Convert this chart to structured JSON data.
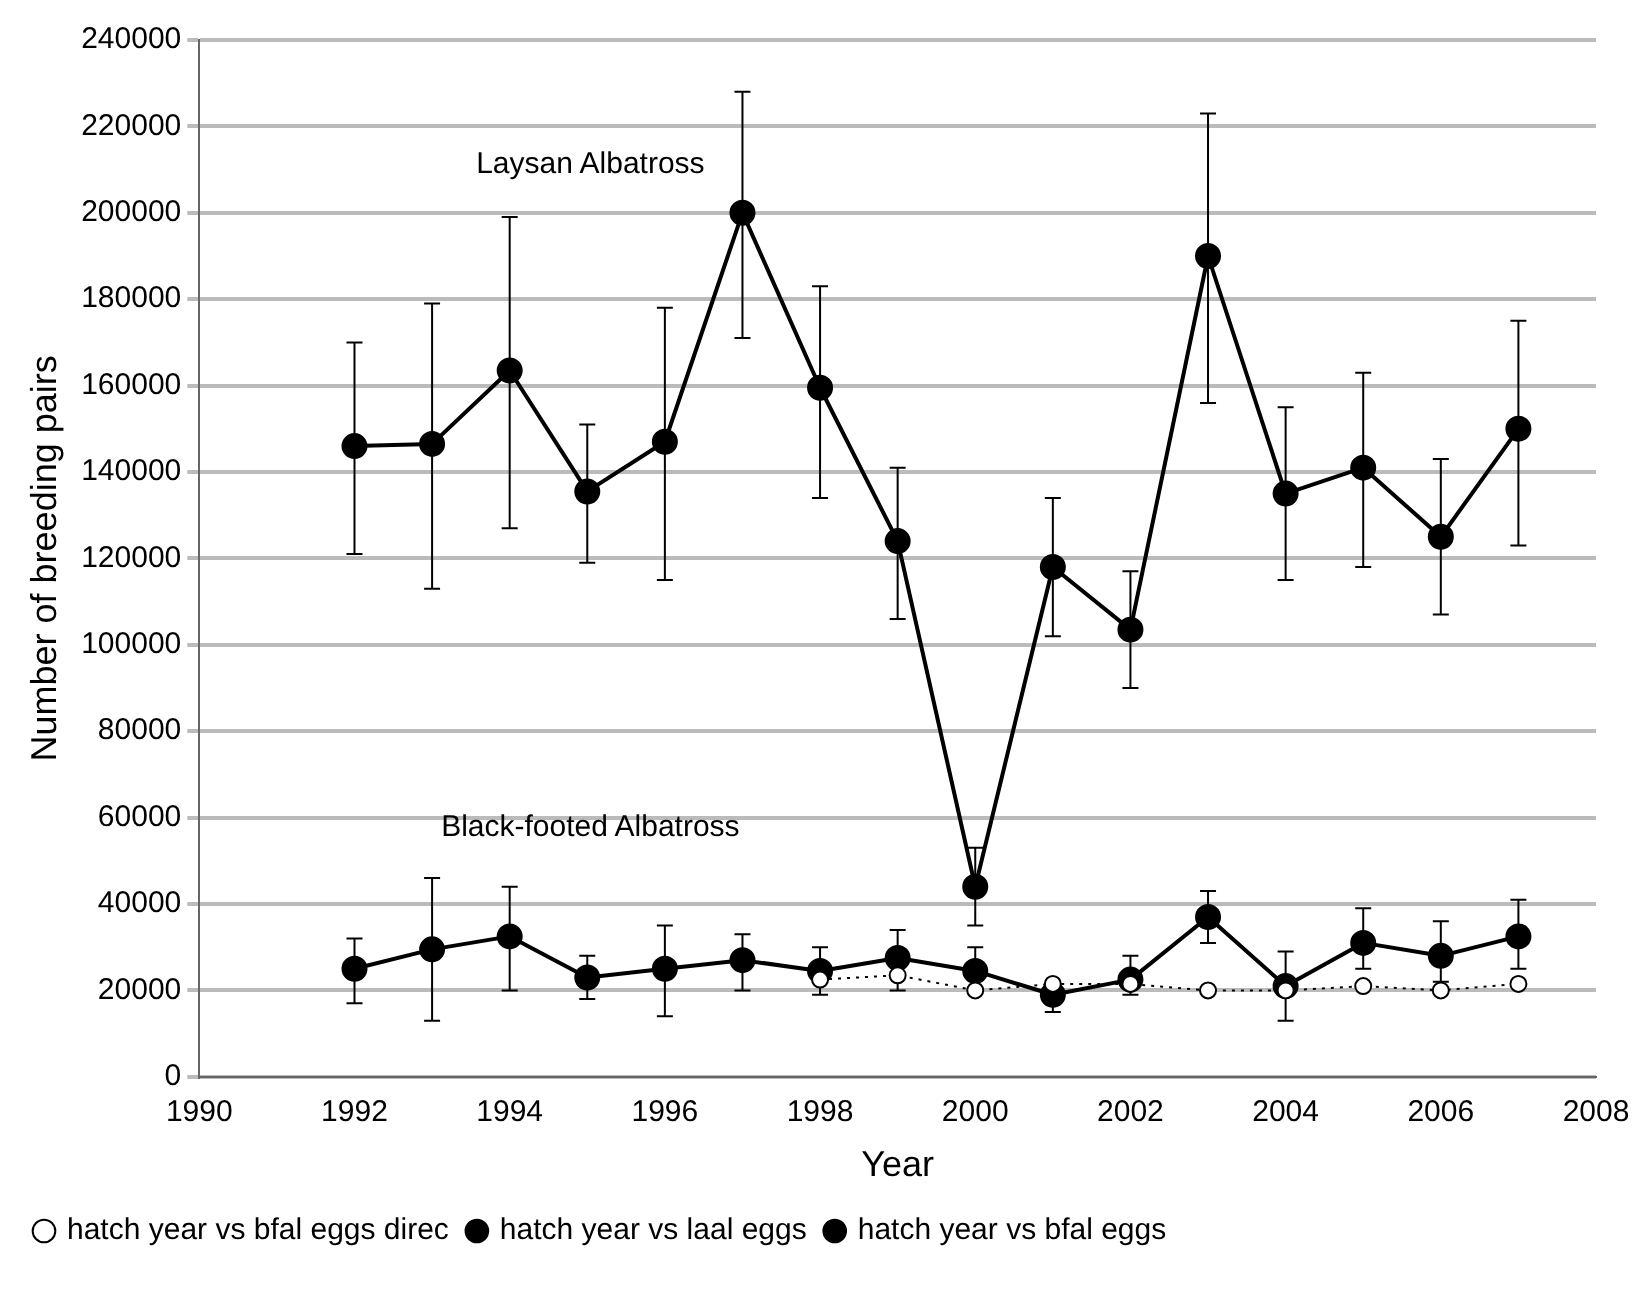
{
  "chart_data": {
    "type": "line",
    "xlabel": "Year",
    "ylabel": "Number of breeding pairs",
    "x": [
      1992,
      1993,
      1994,
      1995,
      1996,
      1997,
      1998,
      1999,
      2000,
      2001,
      2002,
      2003,
      2004,
      2005,
      2006,
      2007
    ],
    "xlim": [
      1990,
      2008
    ],
    "xticks": [
      1990,
      1992,
      1994,
      1996,
      1998,
      2000,
      2002,
      2004,
      2006,
      2008
    ],
    "ylim": [
      0,
      240000
    ],
    "yticks": [
      0,
      20000,
      40000,
      60000,
      80000,
      100000,
      120000,
      140000,
      160000,
      180000,
      200000,
      220000,
      240000
    ],
    "grid": "y",
    "legend": "bottom",
    "marker": "circle",
    "series": [
      {
        "name": "hatch year vs laal eggs",
        "color": "#000000",
        "line_style": "solid",
        "values": [
          146000,
          146500,
          163500,
          135500,
          147000,
          200000,
          159500,
          124000,
          44000,
          118000,
          103500,
          190000,
          135000,
          141000,
          125000,
          150000
        ],
        "errors": [
          [
            121000,
            170000
          ],
          [
            113000,
            179000
          ],
          [
            127000,
            199000
          ],
          [
            119000,
            151000
          ],
          [
            115000,
            178000
          ],
          [
            171000,
            228000
          ],
          [
            134000,
            183000
          ],
          [
            106000,
            141000
          ],
          [
            35000,
            53000
          ],
          [
            102000,
            134000
          ],
          [
            90000,
            117000
          ],
          [
            156000,
            223000
          ],
          [
            115000,
            155000
          ],
          [
            118000,
            163000
          ],
          [
            107000,
            143000
          ],
          [
            123000,
            175000
          ]
        ]
      },
      {
        "name": "hatch year vs bfal eggs",
        "color": "#000000",
        "line_style": "solid",
        "values": [
          25000,
          29500,
          32500,
          23000,
          25000,
          27000,
          24500,
          27500,
          24500,
          19000,
          22500,
          37000,
          21000,
          31000,
          28000,
          32500
        ],
        "errors": [
          [
            17000,
            32000
          ],
          [
            13000,
            46000
          ],
          [
            20000,
            44000
          ],
          [
            18000,
            28000
          ],
          [
            14000,
            35000
          ],
          [
            20000,
            33000
          ],
          [
            19000,
            30000
          ],
          [
            20000,
            34000
          ],
          [
            20000,
            30000
          ],
          [
            15000,
            22000
          ],
          [
            19000,
            28000
          ],
          [
            31000,
            43000
          ],
          [
            13000,
            29000
          ],
          [
            25000,
            39000
          ],
          [
            22000,
            36000
          ],
          [
            25000,
            41000
          ]
        ]
      },
      {
        "name": "hatch year vs bfal eggs direc",
        "color": "#000000",
        "line_style": "dotted",
        "x": [
          1998,
          1999,
          2000,
          2001,
          2002,
          2003,
          2004,
          2005,
          2006,
          2007
        ],
        "values": [
          22500,
          23500,
          20000,
          21500,
          21500,
          20000,
          20000,
          21000,
          20000,
          21500
        ]
      }
    ],
    "annotations": [
      "Laysan Albatross",
      "Black-footed Albatross"
    ]
  }
}
